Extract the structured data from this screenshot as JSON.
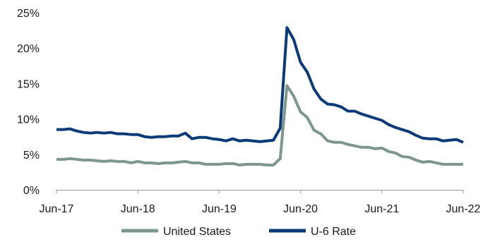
{
  "chart_data": {
    "type": "line",
    "title": "",
    "xlabel": "",
    "ylabel": "",
    "x_ticks": [
      "Jun-17",
      "Jun-18",
      "Jun-19",
      "Jun-20",
      "Jun-21",
      "Jun-22"
    ],
    "y_ticks": [
      "0%",
      "5%",
      "10%",
      "15%",
      "20%",
      "25%"
    ],
    "ylim": [
      0,
      25
    ],
    "x_start": "Jun-17",
    "x_end": "Jun-22",
    "frequency": "monthly",
    "grid": false,
    "legend_position": "bottom",
    "series": [
      {
        "name": "United States",
        "color": "#7d978f",
        "values": [
          4.3,
          4.3,
          4.4,
          4.3,
          4.2,
          4.2,
          4.1,
          4.0,
          4.1,
          4.0,
          4.0,
          3.8,
          4.0,
          3.8,
          3.8,
          3.7,
          3.8,
          3.8,
          3.9,
          4.0,
          3.8,
          3.8,
          3.6,
          3.6,
          3.6,
          3.7,
          3.7,
          3.5,
          3.6,
          3.6,
          3.6,
          3.5,
          3.5,
          4.4,
          14.7,
          13.2,
          11.0,
          10.2,
          8.4,
          7.9,
          6.9,
          6.7,
          6.7,
          6.4,
          6.2,
          6.0,
          6.0,
          5.8,
          5.9,
          5.4,
          5.2,
          4.7,
          4.6,
          4.2,
          3.9,
          4.0,
          3.8,
          3.6,
          3.6,
          3.6,
          3.6
        ]
      },
      {
        "name": "U-6 Rate",
        "color": "#0b3a78",
        "values": [
          8.5,
          8.5,
          8.6,
          8.3,
          8.1,
          8.0,
          8.1,
          8.0,
          8.1,
          7.9,
          7.9,
          7.8,
          7.8,
          7.5,
          7.4,
          7.5,
          7.5,
          7.6,
          7.6,
          8.0,
          7.2,
          7.4,
          7.4,
          7.2,
          7.1,
          6.9,
          7.2,
          6.9,
          7.0,
          6.9,
          6.8,
          6.9,
          7.0,
          8.7,
          22.9,
          21.2,
          18.0,
          16.6,
          14.2,
          12.8,
          12.1,
          12.0,
          11.7,
          11.1,
          11.1,
          10.7,
          10.4,
          10.1,
          9.8,
          9.2,
          8.8,
          8.5,
          8.2,
          7.7,
          7.3,
          7.2,
          7.2,
          6.9,
          7.0,
          7.1,
          6.7
        ]
      }
    ]
  }
}
